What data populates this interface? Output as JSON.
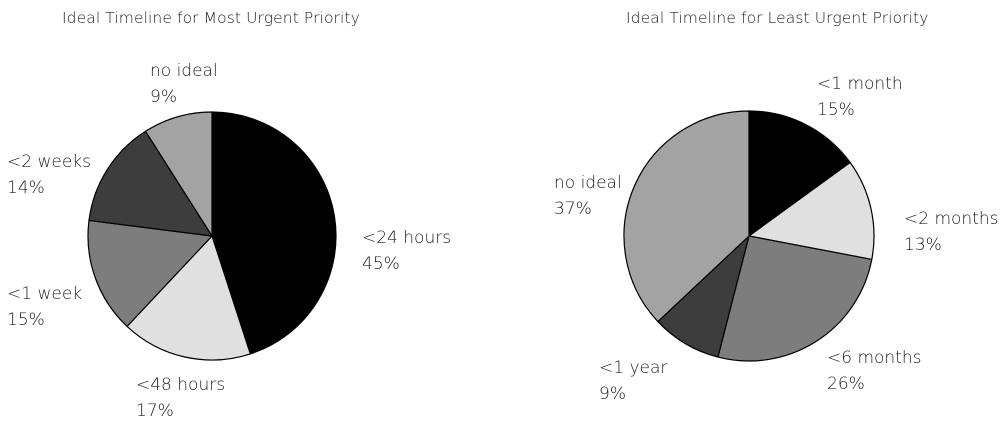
{
  "chart_data": [
    {
      "type": "pie",
      "title": "Ideal Timeline for Most Urgent Priority",
      "start_angle_deg": 0,
      "direction": "clockwise",
      "slices": [
        {
          "label": "<24 hours",
          "value": 45,
          "value_label": "45%",
          "color": "#000000"
        },
        {
          "label": "<48 hours",
          "value": 17,
          "value_label": "17%",
          "color": "#e0e0e0"
        },
        {
          "label": "<1 week",
          "value": 15,
          "value_label": "15%",
          "color": "#7d7d7d"
        },
        {
          "label": "<2 weeks",
          "value": 14,
          "value_label": "14%",
          "color": "#3d3d3d"
        },
        {
          "label": "no ideal",
          "value": 9,
          "value_label": "9%",
          "color": "#a3a3a3"
        }
      ]
    },
    {
      "type": "pie",
      "title": "Ideal Timeline for Least Urgent Priority",
      "start_angle_deg": 0,
      "direction": "clockwise",
      "slices": [
        {
          "label": "<1 month",
          "value": 15,
          "value_label": "15%",
          "color": "#000000"
        },
        {
          "label": "<2 months",
          "value": 13,
          "value_label": "13%",
          "color": "#e0e0e0"
        },
        {
          "label": "<6 months",
          "value": 26,
          "value_label": "26%",
          "color": "#7d7d7d"
        },
        {
          "label": "<1 year",
          "value": 9,
          "value_label": "9%",
          "color": "#3d3d3d"
        },
        {
          "label": "no ideal",
          "value": 37,
          "value_label": "37%",
          "color": "#a3a3a3"
        }
      ]
    }
  ]
}
